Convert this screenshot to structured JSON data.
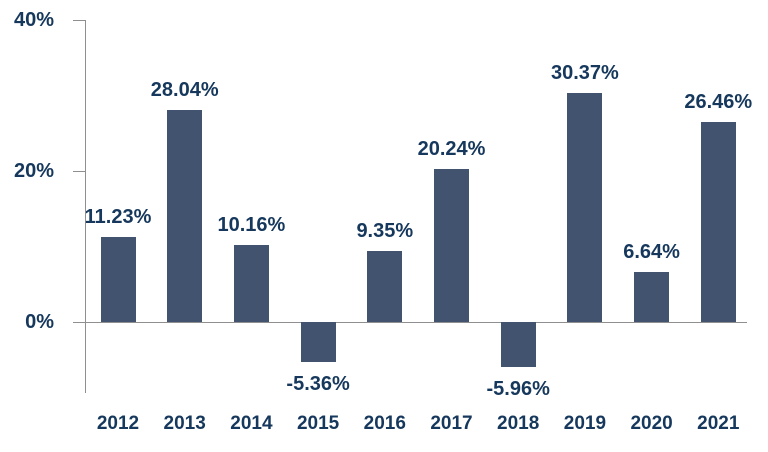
{
  "chart_data": {
    "type": "bar",
    "title": "",
    "xlabel": "",
    "ylabel": "",
    "categories": [
      "2012",
      "2013",
      "2014",
      "2015",
      "2016",
      "2017",
      "2018",
      "2019",
      "2020",
      "2021"
    ],
    "values": [
      11.23,
      28.04,
      10.16,
      -5.36,
      9.35,
      20.24,
      -5.96,
      30.37,
      6.64,
      26.46
    ],
    "value_labels": [
      "11.23%",
      "28.04%",
      "10.16%",
      "-5.36%",
      "9.35%",
      "20.24%",
      "-5.96%",
      "30.37%",
      "6.64%",
      "26.46%"
    ],
    "yticks": [
      {
        "value": 40,
        "label": "40%"
      },
      {
        "value": 20,
        "label": "20%"
      },
      {
        "value": 0,
        "label": "0%"
      }
    ],
    "ylim": [
      -10,
      40
    ],
    "grid": false,
    "legend": null,
    "colors": {
      "bar": "#42536F",
      "text": "#16385C",
      "axis": "#8F8F8F",
      "background": "#FFFFFF"
    }
  }
}
